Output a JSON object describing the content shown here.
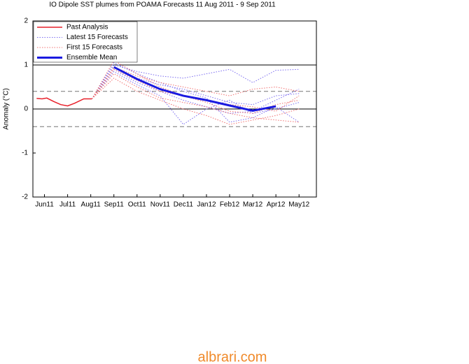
{
  "chart_data": {
    "type": "line",
    "title": "IO Dipole  SST plumes from POAMA Forecasts 11 Aug 2011 -  9 Sep 2011",
    "y_label": "Anomaly (°C)",
    "xlim": [
      0.5,
      12.75
    ],
    "xticks": [
      {
        "value": 1,
        "label": "Jun11"
      },
      {
        "value": 2,
        "label": "Jul11"
      },
      {
        "value": 3,
        "label": "Aug11"
      },
      {
        "value": 4,
        "label": "Sep11"
      },
      {
        "value": 5,
        "label": "Oct11"
      },
      {
        "value": 6,
        "label": "Nov11"
      },
      {
        "value": 7,
        "label": "Dec11"
      },
      {
        "value": 8,
        "label": "Jan12"
      },
      {
        "value": 9,
        "label": "Feb12"
      },
      {
        "value": 10,
        "label": "Mar12"
      },
      {
        "value": 11,
        "label": "Apr12"
      },
      {
        "value": 12,
        "label": "May12"
      }
    ],
    "ylim": [
      -2,
      2
    ],
    "yticks": [
      -2,
      -1,
      0,
      1,
      2
    ],
    "reference_lines": [
      {
        "value": 1,
        "style": "solid"
      },
      {
        "value": 0,
        "style": "solid"
      },
      {
        "value": 0.4,
        "style": "dashed"
      },
      {
        "value": -0.4,
        "style": "dashed"
      }
    ],
    "legend": "upper left",
    "series": [
      {
        "name": "Past Analysis",
        "color": "#e8202a",
        "style": "solid",
        "width": 1.5,
        "x": [
          0.66,
          0.9,
          1.1,
          1.4,
          1.7,
          2.0,
          2.3,
          2.7,
          3.05
        ],
        "values": [
          0.24,
          0.23,
          0.25,
          0.17,
          0.1,
          0.07,
          0.13,
          0.23,
          0.23
        ]
      },
      {
        "name": "Latest 15 Forecasts",
        "color": "#7b6cf0",
        "style": "dotted",
        "width": 1,
        "x": [
          3.05,
          4,
          5,
          6,
          7,
          8,
          9,
          10,
          11,
          12
        ],
        "members": [
          [
            0.23,
            1.0,
            0.85,
            0.75,
            0.7,
            0.8,
            0.9,
            0.6,
            0.88,
            0.9
          ],
          [
            0.23,
            0.9,
            0.6,
            0.4,
            0.2,
            0.05,
            -0.1,
            -0.05,
            0.2,
            0.45
          ],
          [
            0.23,
            0.95,
            0.7,
            0.55,
            0.45,
            0.3,
            0.15,
            0.1,
            0.3,
            0.35
          ],
          [
            0.23,
            0.85,
            0.55,
            0.3,
            -0.35,
            0.0,
            0.2,
            -0.1,
            0.0,
            0.15
          ],
          [
            0.23,
            1.05,
            0.8,
            0.6,
            0.4,
            0.25,
            -0.3,
            -0.2,
            0.05,
            -0.3
          ]
        ]
      },
      {
        "name": "First 15 Forecasts",
        "color": "#f07070",
        "style": "dotted",
        "width": 1,
        "x": [
          3.05,
          4,
          5,
          6,
          7,
          8,
          9,
          10,
          11,
          12
        ],
        "members": [
          [
            0.23,
            0.8,
            0.5,
            0.25,
            0.15,
            0.05,
            -0.1,
            -0.2,
            -0.25,
            -0.3
          ],
          [
            0.23,
            0.95,
            0.75,
            0.6,
            0.5,
            0.4,
            0.3,
            0.45,
            0.5,
            0.4
          ],
          [
            0.23,
            1.1,
            0.8,
            0.5,
            0.3,
            0.15,
            -0.05,
            -0.1,
            0.1,
            0.2
          ],
          [
            0.23,
            0.7,
            0.4,
            0.2,
            0.0,
            -0.15,
            -0.35,
            -0.25,
            -0.15,
            0.0
          ],
          [
            0.23,
            0.9,
            0.65,
            0.4,
            0.3,
            0.2,
            0.1,
            0.05,
            -0.05,
            0.3
          ]
        ]
      },
      {
        "name": "Ensemble Mean",
        "color": "#1a1ae0",
        "style": "solid",
        "width": 3,
        "x": [
          4,
          5,
          6,
          7,
          8,
          9,
          10,
          11
        ],
        "values": [
          0.95,
          0.68,
          0.45,
          0.3,
          0.2,
          0.08,
          -0.04,
          0.06
        ]
      }
    ],
    "watermark": "albrari.com"
  }
}
